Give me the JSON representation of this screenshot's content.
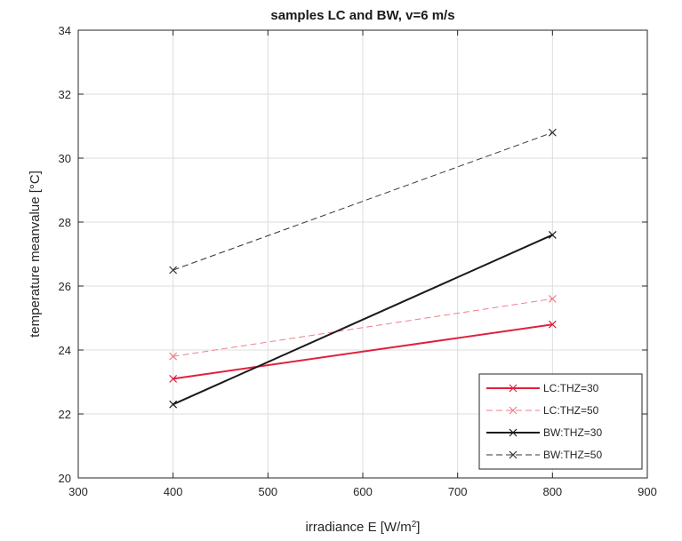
{
  "chart_data": {
    "type": "line",
    "title": "samples LC and BW, v=6 m/s",
    "xlabel_main": "irradiance E [W/m",
    "xlabel_sup": "2",
    "xlabel_end": "]",
    "ylabel": "temperature meanvalue [°C]",
    "xlim": [
      300,
      900
    ],
    "ylim": [
      20,
      34
    ],
    "xticks": [
      300,
      400,
      500,
      600,
      700,
      800,
      900
    ],
    "yticks": [
      20,
      22,
      24,
      26,
      28,
      30,
      32,
      34
    ],
    "grid": true,
    "legend_position": "bottom-right",
    "series": [
      {
        "name": "LC:THZ=30",
        "x": [
          400,
          800
        ],
        "y": [
          23.1,
          24.8
        ],
        "color": "#e0203c",
        "style": "solid",
        "width": 2,
        "marker": "x"
      },
      {
        "name": "LC:THZ=50",
        "x": [
          400,
          800
        ],
        "y": [
          23.8,
          25.6
        ],
        "color": "#ee7f8c",
        "style": "dashed",
        "width": 1,
        "marker": "x"
      },
      {
        "name": "BW:THZ=30",
        "x": [
          400,
          800
        ],
        "y": [
          22.3,
          27.6
        ],
        "color": "#1a1a1a",
        "style": "solid",
        "width": 2,
        "marker": "x"
      },
      {
        "name": "BW:THZ=50",
        "x": [
          400,
          800
        ],
        "y": [
          26.5,
          30.8
        ],
        "color": "#333333",
        "style": "dashed",
        "width": 1,
        "marker": "x"
      }
    ]
  }
}
